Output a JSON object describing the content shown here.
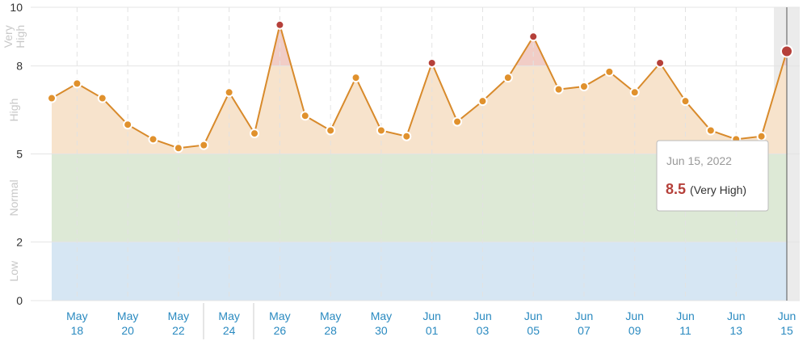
{
  "chart_data": {
    "type": "line",
    "categories": [
      null,
      "May 18",
      null,
      "May 20",
      null,
      "May 22",
      null,
      "May 24",
      null,
      "May 26",
      null,
      "May 28",
      null,
      "May 30",
      null,
      "Jun 01",
      null,
      "Jun 03",
      null,
      "Jun 05",
      null,
      "Jun 07",
      null,
      "Jun 09",
      null,
      "Jun 11",
      null,
      "Jun 13",
      null,
      "Jun 15"
    ],
    "series": [
      {
        "color": "#d88a2b",
        "values": [
          6.9,
          7.4,
          6.9,
          6.0,
          5.5,
          5.2,
          5.3,
          7.1,
          5.7,
          9.4,
          6.3,
          5.8,
          7.6,
          5.8,
          5.6,
          8.1,
          6.1,
          6.8,
          7.6,
          9.0,
          7.2,
          7.3,
          7.8,
          7.1,
          8.1,
          6.8,
          5.8,
          5.5,
          5.6,
          8.5
        ]
      }
    ],
    "zones": [
      {
        "name": "Low",
        "from": 0,
        "to": 2,
        "color": "#d6e6f3",
        "marker": "#e0912d"
      },
      {
        "name": "Normal",
        "from": 2,
        "to": 5,
        "color": "#dde9d6",
        "marker": "#e0912d"
      },
      {
        "name": "High",
        "from": 5,
        "to": 8,
        "color": "#f7e3cc",
        "marker": "#e0912d"
      },
      {
        "name": "Very High",
        "from": 8,
        "to": 10,
        "color": "#f1cdc6",
        "marker": "#b5403a"
      }
    ],
    "ylim": [
      0,
      10
    ],
    "yticks": [
      0,
      2,
      5,
      8,
      10
    ],
    "grid": true,
    "tooltip": {
      "date": "Jun 15, 2022",
      "level": "(Very High)"
    }
  }
}
